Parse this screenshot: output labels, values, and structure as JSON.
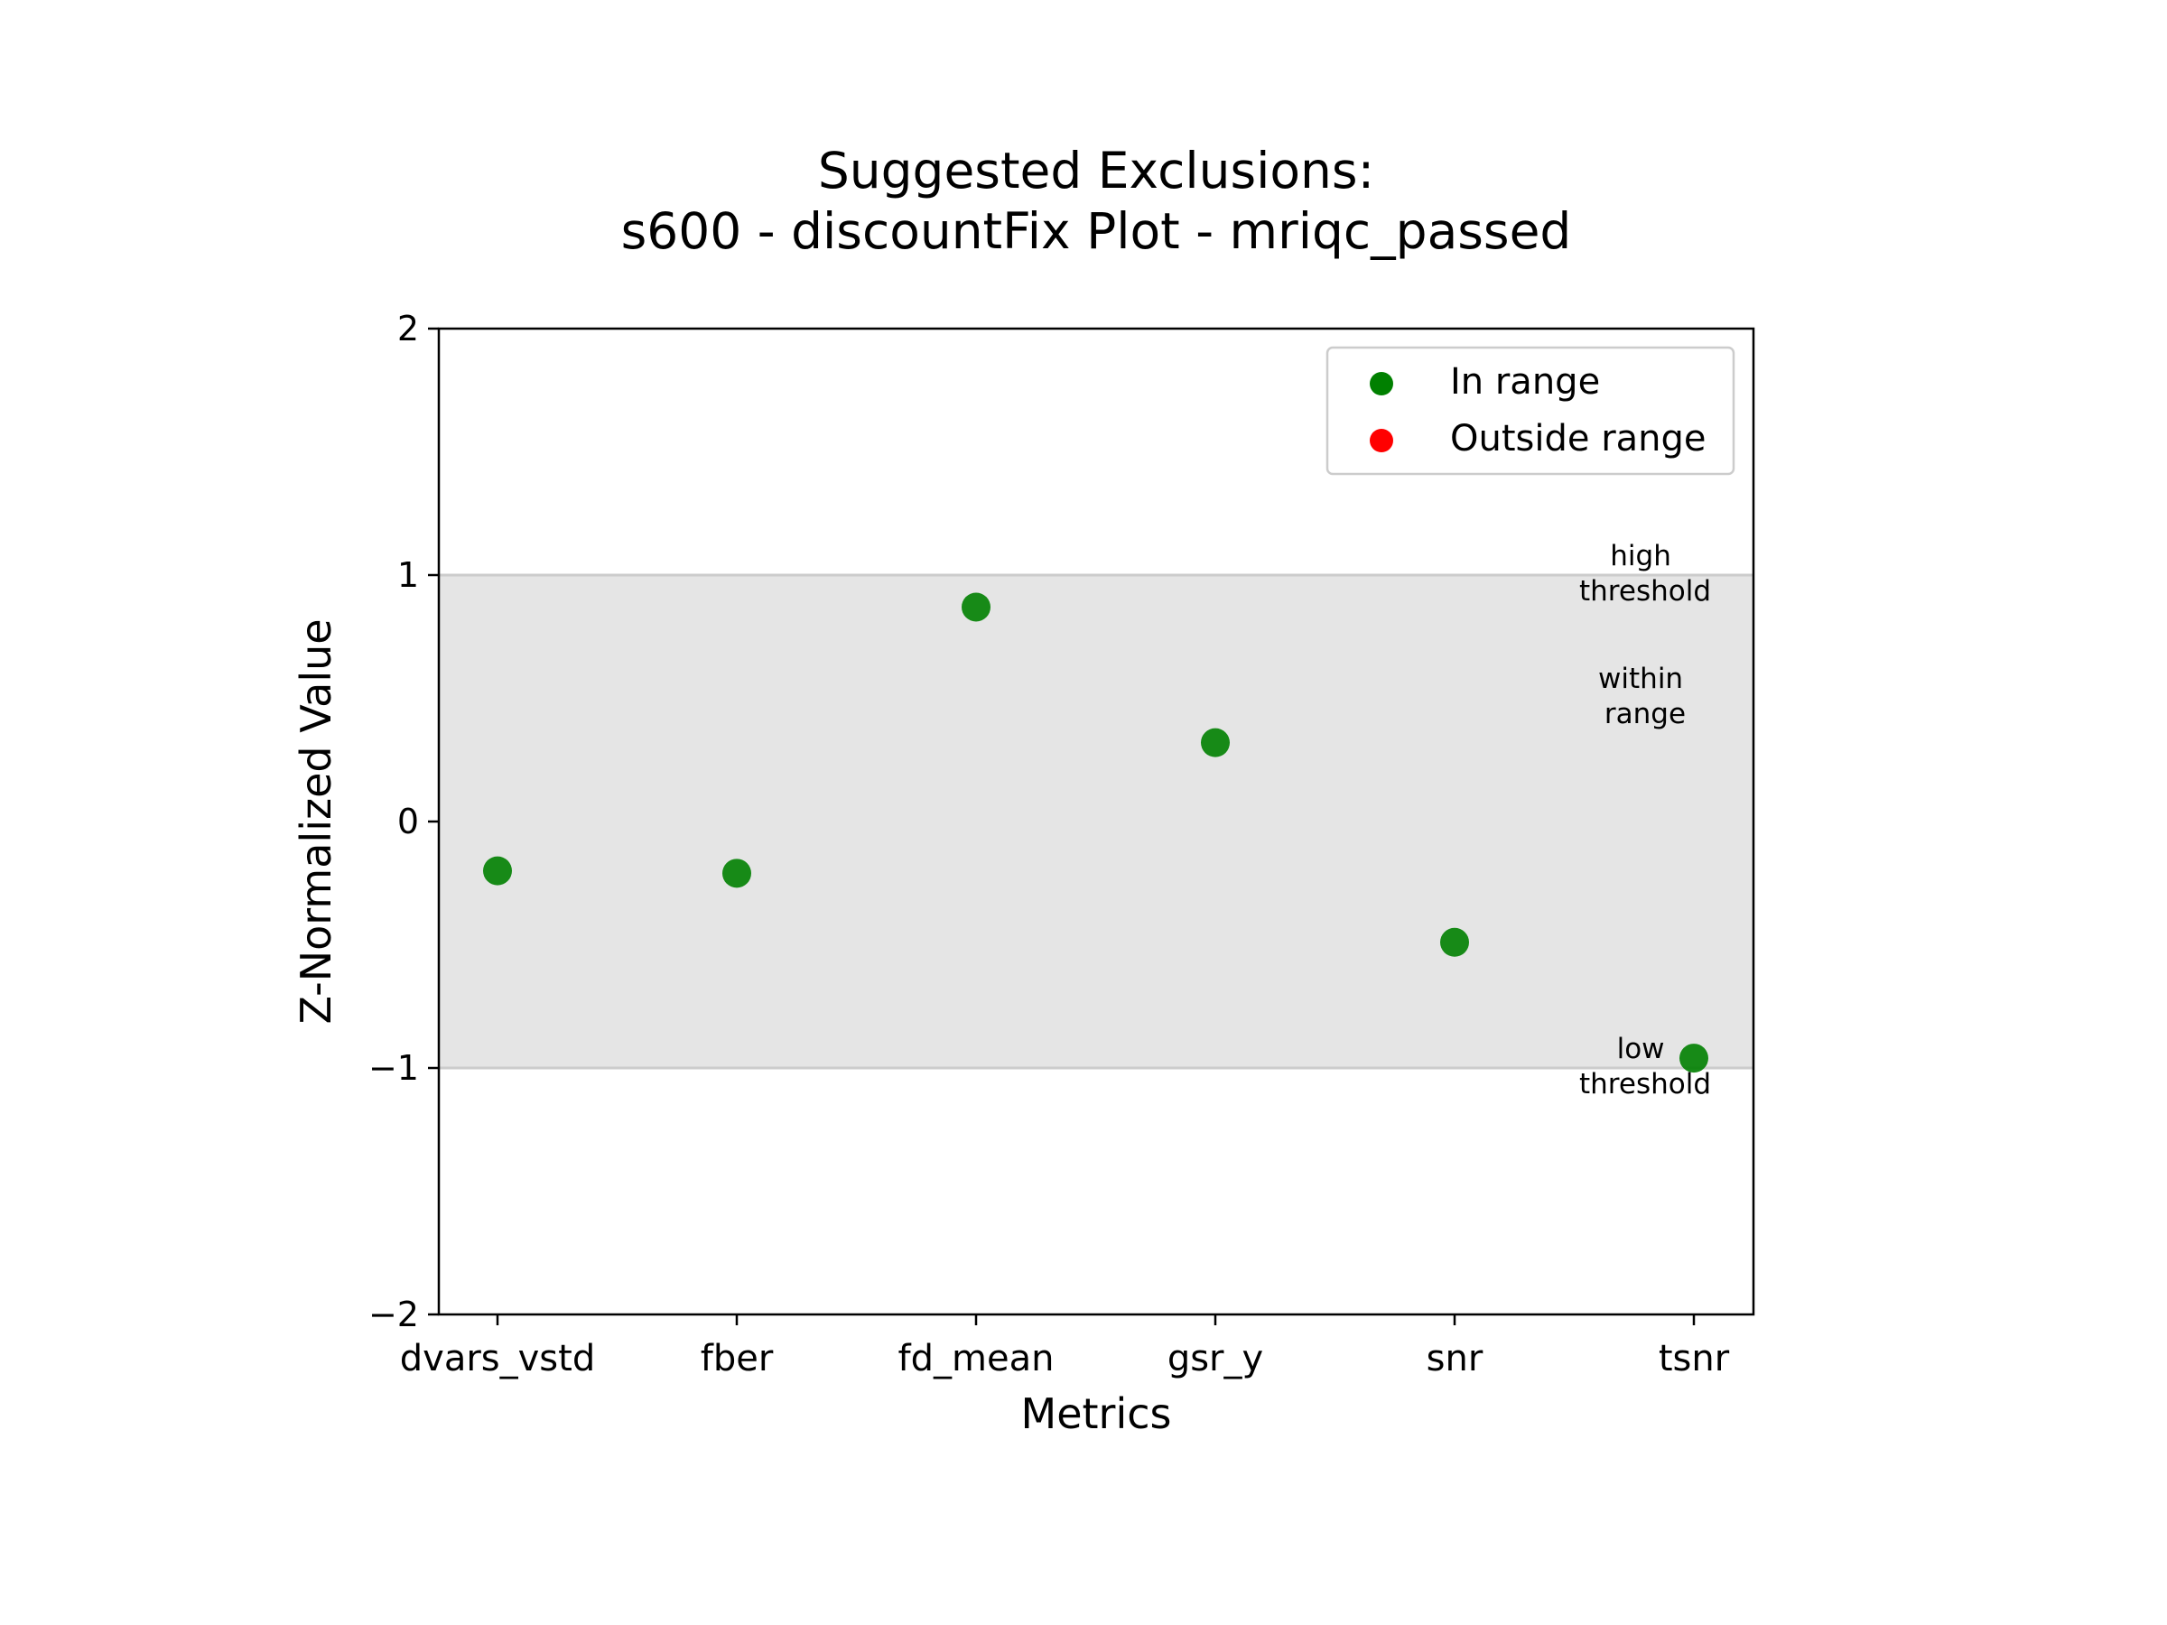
{
  "chart_data": {
    "type": "scatter",
    "title_line1": "Suggested Exclusions:",
    "title_line2": "s600 - discountFix Plot - mriqc_passed",
    "xlabel": "Metrics",
    "ylabel": "Z-Normalized Value",
    "ylim": [
      -2,
      2
    ],
    "yticks": [
      {
        "value": 2,
        "label": "2"
      },
      {
        "value": 1,
        "label": "1"
      },
      {
        "value": 0,
        "label": "0"
      },
      {
        "value": -1,
        "label": "−1"
      },
      {
        "value": -2,
        "label": "−2"
      }
    ],
    "categories": [
      "dvars_vstd",
      "fber",
      "fd_mean",
      "gsr_y",
      "snr",
      "tsnr"
    ],
    "values": [
      -0.2,
      -0.21,
      0.87,
      0.32,
      -0.49,
      -0.96
    ],
    "status": [
      "in",
      "in",
      "in",
      "in",
      "in",
      "in"
    ],
    "range_band": [
      -1,
      1
    ],
    "grid": false,
    "legend": {
      "placement": "top-right",
      "items": [
        {
          "label": "In range",
          "color": "#008000"
        },
        {
          "label": "Outside range",
          "color": "#ff0000"
        }
      ]
    },
    "annotations": {
      "high": [
        "high",
        "threshold"
      ],
      "within": [
        "within",
        "range"
      ],
      "low": [
        "low",
        "threshold"
      ]
    },
    "colors": {
      "in_range": "#008000",
      "outside_range": "#ff0000",
      "band": "#e5e5e5",
      "threshold_line": "#cccccc"
    }
  }
}
